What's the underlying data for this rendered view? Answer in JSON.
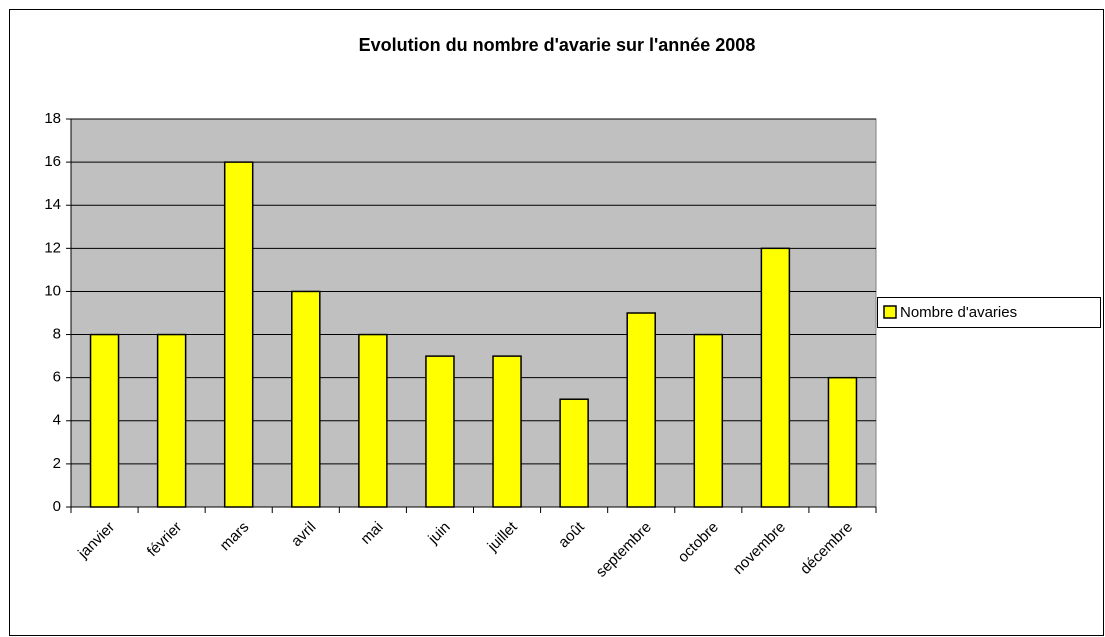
{
  "chart_data": {
    "type": "bar",
    "title": "Evolution du nombre d'avarie sur l'année 2008",
    "categories": [
      "janvier",
      "février",
      "mars",
      "avril",
      "mai",
      "juin",
      "juillet",
      "août",
      "septembre",
      "octobre",
      "novembre",
      "décembre"
    ],
    "series": [
      {
        "name": "Nombre d'avaries",
        "color": "#ffff00",
        "values": [
          8,
          8,
          16,
          10,
          8,
          7,
          7,
          5,
          9,
          8,
          12,
          6
        ]
      }
    ],
    "ylim": [
      0,
      18
    ],
    "yticks": [
      0,
      2,
      4,
      6,
      8,
      10,
      12,
      14,
      16,
      18
    ],
    "grid": true,
    "legend": "right"
  }
}
